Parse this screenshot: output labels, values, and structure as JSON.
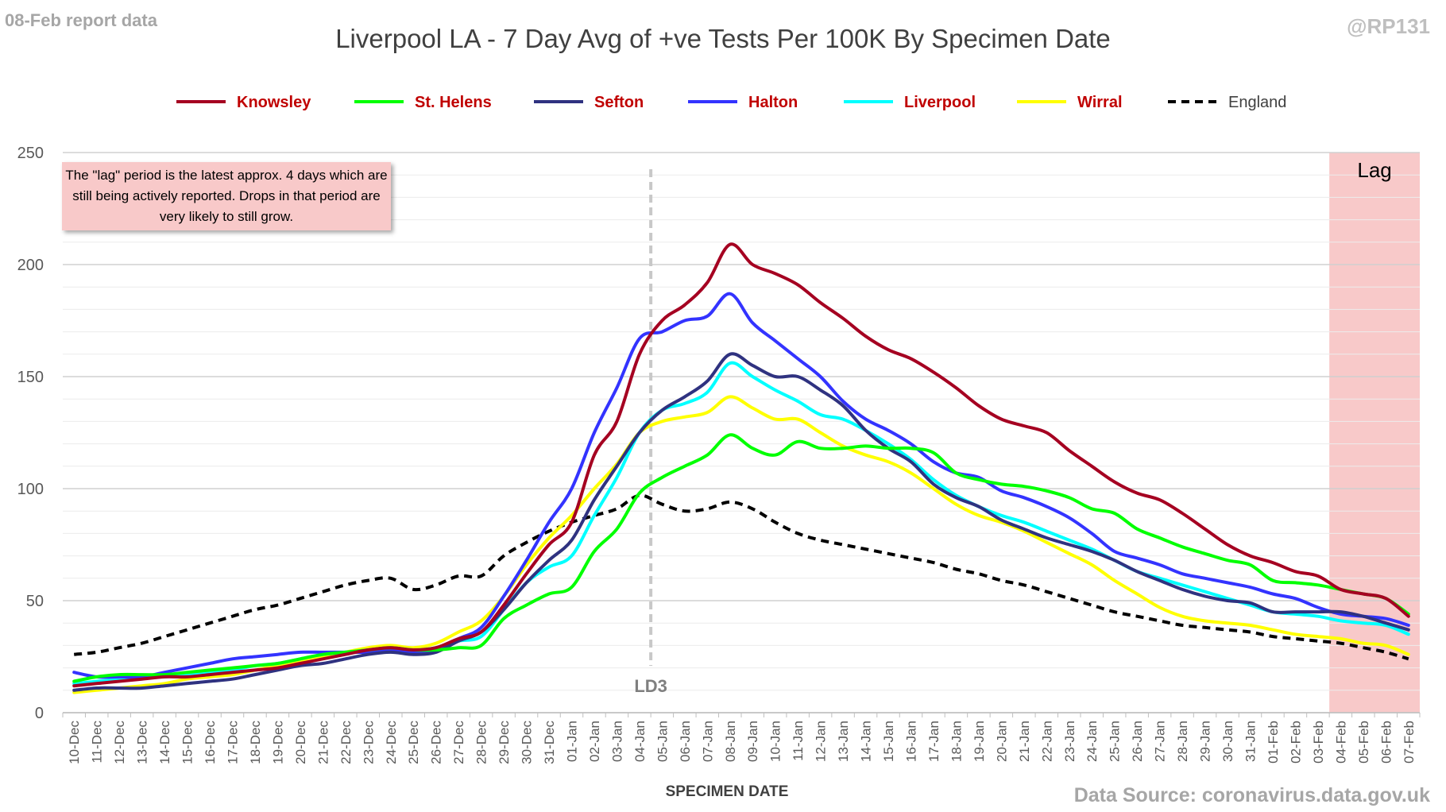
{
  "header": {
    "report_label": "08-Feb report data",
    "handle": "@RP131",
    "source": "Data Source: coronavirus.data.gov.uk"
  },
  "note_text": "The \"lag\" period is the latest approx. 4 days which are still being actively reported.  Drops in that period are very likely to still grow.",
  "chart_data": {
    "type": "line",
    "title": "Liverpool LA - 7 Day Avg of +ve Tests Per 100K By Specimen Date",
    "xlabel": "SPECIMEN DATE",
    "ylabel": "",
    "ylim": [
      0,
      250
    ],
    "yticks": [
      0,
      50,
      100,
      150,
      200,
      250
    ],
    "grid": true,
    "legend_position": "top",
    "categories": [
      "10-Dec",
      "11-Dec",
      "12-Dec",
      "13-Dec",
      "14-Dec",
      "15-Dec",
      "16-Dec",
      "17-Dec",
      "18-Dec",
      "19-Dec",
      "20-Dec",
      "21-Dec",
      "22-Dec",
      "23-Dec",
      "24-Dec",
      "25-Dec",
      "26-Dec",
      "27-Dec",
      "28-Dec",
      "29-Dec",
      "30-Dec",
      "31-Dec",
      "01-Jan",
      "02-Jan",
      "03-Jan",
      "04-Jan",
      "05-Jan",
      "06-Jan",
      "07-Jan",
      "08-Jan",
      "09-Jan",
      "10-Jan",
      "11-Jan",
      "12-Jan",
      "13-Jan",
      "14-Jan",
      "15-Jan",
      "16-Jan",
      "17-Jan",
      "18-Jan",
      "19-Jan",
      "20-Jan",
      "21-Jan",
      "22-Jan",
      "23-Jan",
      "24-Jan",
      "25-Jan",
      "26-Jan",
      "27-Jan",
      "28-Jan",
      "29-Jan",
      "30-Jan",
      "31-Jan",
      "01-Feb",
      "02-Feb",
      "03-Feb",
      "04-Feb",
      "05-Feb",
      "06-Feb",
      "07-Feb"
    ],
    "series": [
      {
        "name": "Knowsley",
        "color": "#a50021",
        "legend_text_color": "#c00000",
        "dashed": false,
        "values": [
          12,
          13,
          14,
          15,
          16,
          16,
          17,
          18,
          19,
          20,
          22,
          24,
          26,
          28,
          29,
          28,
          29,
          33,
          36,
          48,
          62,
          75,
          85,
          115,
          130,
          160,
          175,
          182,
          192,
          209,
          200,
          196,
          191,
          183,
          176,
          168,
          162,
          158,
          152,
          145,
          137,
          131,
          128,
          125,
          117,
          110,
          103,
          98,
          95,
          89,
          82,
          75,
          70,
          67,
          63,
          61,
          55,
          53,
          51,
          43
        ]
      },
      {
        "name": "St. Helens",
        "color": "#00ff00",
        "legend_text_color": "#c00000",
        "dashed": false,
        "values": [
          14,
          16,
          17,
          17,
          17,
          18,
          19,
          20,
          21,
          22,
          24,
          26,
          27,
          28,
          29,
          28,
          28,
          29,
          30,
          42,
          48,
          53,
          56,
          72,
          82,
          98,
          105,
          110,
          115,
          124,
          118,
          115,
          121,
          118,
          118,
          119,
          118,
          118,
          116,
          107,
          104,
          102,
          101,
          99,
          96,
          91,
          89,
          82,
          78,
          74,
          71,
          68,
          66,
          59,
          58,
          57,
          55,
          53,
          51,
          44
        ]
      },
      {
        "name": "Sefton",
        "color": "#2f3280",
        "legend_text_color": "#c00000",
        "dashed": false,
        "values": [
          10,
          11,
          11,
          11,
          12,
          13,
          14,
          15,
          17,
          19,
          21,
          22,
          24,
          26,
          27,
          26,
          27,
          32,
          36,
          46,
          58,
          68,
          77,
          95,
          110,
          125,
          135,
          141,
          148,
          160,
          155,
          150,
          150,
          144,
          137,
          126,
          118,
          112,
          102,
          96,
          92,
          86,
          82,
          78,
          75,
          72,
          68,
          63,
          59,
          55,
          52,
          50,
          49,
          45,
          45,
          45,
          45,
          43,
          40,
          37
        ]
      },
      {
        "name": "Halton",
        "color": "#3333ff",
        "legend_text_color": "#c00000",
        "dashed": false,
        "values": [
          18,
          16,
          16,
          16,
          18,
          20,
          22,
          24,
          25,
          26,
          27,
          27,
          27,
          27,
          28,
          27,
          28,
          33,
          38,
          52,
          68,
          85,
          100,
          125,
          145,
          167,
          170,
          175,
          177,
          187,
          174,
          166,
          158,
          150,
          139,
          131,
          126,
          120,
          112,
          107,
          105,
          99,
          96,
          92,
          87,
          80,
          72,
          69,
          66,
          62,
          60,
          58,
          56,
          53,
          51,
          47,
          44,
          43,
          42,
          39
        ]
      },
      {
        "name": "Liverpool",
        "color": "#00ffff",
        "legend_text_color": "#c00000",
        "dashed": false,
        "values": [
          13,
          14,
          15,
          16,
          16,
          17,
          18,
          19,
          21,
          22,
          24,
          26,
          27,
          28,
          29,
          28,
          29,
          32,
          34,
          46,
          58,
          65,
          70,
          88,
          105,
          125,
          135,
          138,
          143,
          156,
          150,
          144,
          139,
          133,
          131,
          126,
          120,
          113,
          104,
          97,
          92,
          88,
          85,
          81,
          77,
          73,
          68,
          63,
          60,
          57,
          54,
          51,
          48,
          45,
          44,
          43,
          41,
          40,
          39,
          35
        ]
      },
      {
        "name": "Wirral",
        "color": "#ffff00",
        "legend_text_color": "#c00000",
        "dashed": false,
        "values": [
          9,
          10,
          11,
          12,
          13,
          15,
          16,
          17,
          19,
          21,
          23,
          25,
          27,
          29,
          30,
          29,
          31,
          36,
          41,
          52,
          66,
          78,
          88,
          100,
          111,
          125,
          130,
          132,
          134,
          141,
          136,
          131,
          131,
          125,
          119,
          115,
          112,
          107,
          100,
          93,
          88,
          85,
          81,
          76,
          71,
          66,
          59,
          53,
          47,
          43,
          41,
          40,
          39,
          37,
          35,
          34,
          33,
          31,
          30,
          26
        ]
      },
      {
        "name": "England",
        "color": "#000000",
        "legend_text_color": "#404040",
        "dashed": true,
        "values": [
          26,
          27,
          29,
          31,
          34,
          37,
          40,
          43,
          46,
          48,
          51,
          54,
          57,
          59,
          60,
          55,
          57,
          61,
          61,
          70,
          76,
          81,
          85,
          88,
          91,
          97,
          93,
          90,
          91,
          94,
          91,
          85,
          80,
          77,
          75,
          73,
          71,
          69,
          67,
          64,
          62,
          59,
          57,
          54,
          51,
          48,
          45,
          43,
          41,
          39,
          38,
          37,
          36,
          34,
          33,
          32,
          31,
          29,
          27,
          24
        ]
      }
    ],
    "annotations": {
      "lockdown_label": "LD3",
      "lockdown_after_category": "04-Jan",
      "lag_label": "Lag",
      "lag_start_category": "04-Feb",
      "lag_end_category": "07-Feb",
      "lag_color": "#f8c9c9"
    }
  }
}
